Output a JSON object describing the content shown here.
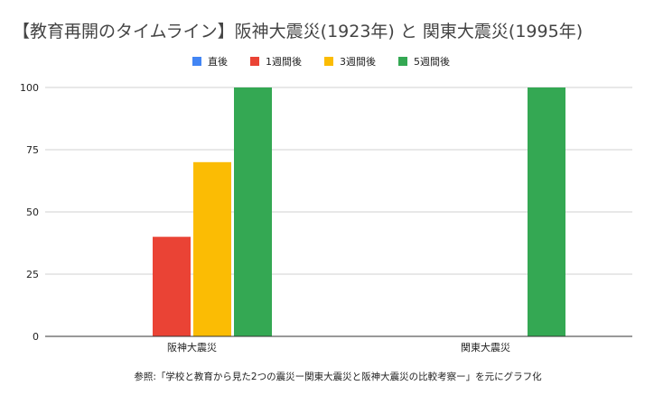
{
  "chart_data": {
    "type": "bar",
    "title": "【教育再開のタイムライン】阪神大震災(1923年) と 関東大震災(1995年)",
    "categories": [
      "阪神大震災",
      "関東大震災"
    ],
    "series": [
      {
        "name": "直後",
        "color": "#4285f4",
        "values": [
          0,
          0
        ]
      },
      {
        "name": "1週間後",
        "color": "#ea4335",
        "values": [
          40,
          0
        ]
      },
      {
        "name": "3週間後",
        "color": "#fbbc04",
        "values": [
          70,
          0
        ]
      },
      {
        "name": "5週間後",
        "color": "#34a853",
        "values": [
          100,
          100
        ]
      }
    ],
    "yticks": [
      "0",
      "25",
      "50",
      "75",
      "100"
    ],
    "ylim": [
      0,
      100
    ],
    "grid": true,
    "legend_position": "top",
    "xlabel": "",
    "ylabel": "",
    "note": "参照:「学校と教育から見た2つの震災ー関東大震災と阪神大震災の比較考察ー」を元にグラフ化"
  }
}
